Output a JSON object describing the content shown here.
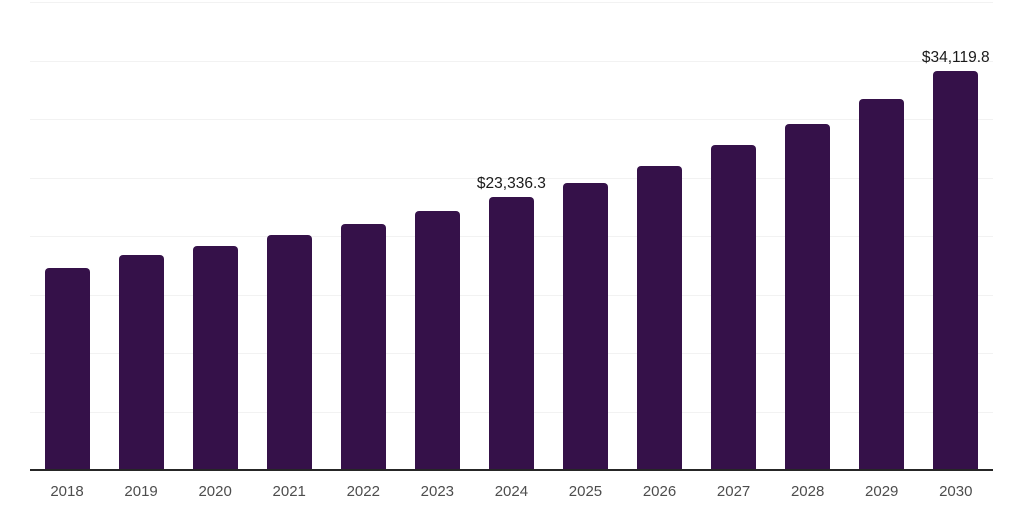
{
  "chart_data": {
    "type": "bar",
    "title": "",
    "xlabel": "",
    "ylabel": "",
    "ylim": [
      0,
      40000
    ],
    "grid": true,
    "gridline_count": 9,
    "gridline_interval": 5000,
    "legend_position": "none",
    "categories": [
      "2018",
      "2019",
      "2020",
      "2021",
      "2022",
      "2023",
      "2024",
      "2025",
      "2026",
      "2027",
      "2028",
      "2029",
      "2030"
    ],
    "values": [
      17300,
      18350,
      19150,
      20100,
      21050,
      22150,
      23336.3,
      24500,
      26000,
      27800,
      29600,
      31700,
      34119.8
    ],
    "data_labels": [
      "",
      "",
      "",
      "",
      "",
      "",
      "$23,336.3",
      "",
      "",
      "",
      "",
      "",
      "$34,119.8"
    ],
    "colors": {
      "bar": "#351149",
      "gridline": "#f2f2f2",
      "axis_line": "#262626",
      "tick_label": "#4d4d4d",
      "data_label": "#1a1a1a",
      "background": "#ffffff"
    }
  }
}
